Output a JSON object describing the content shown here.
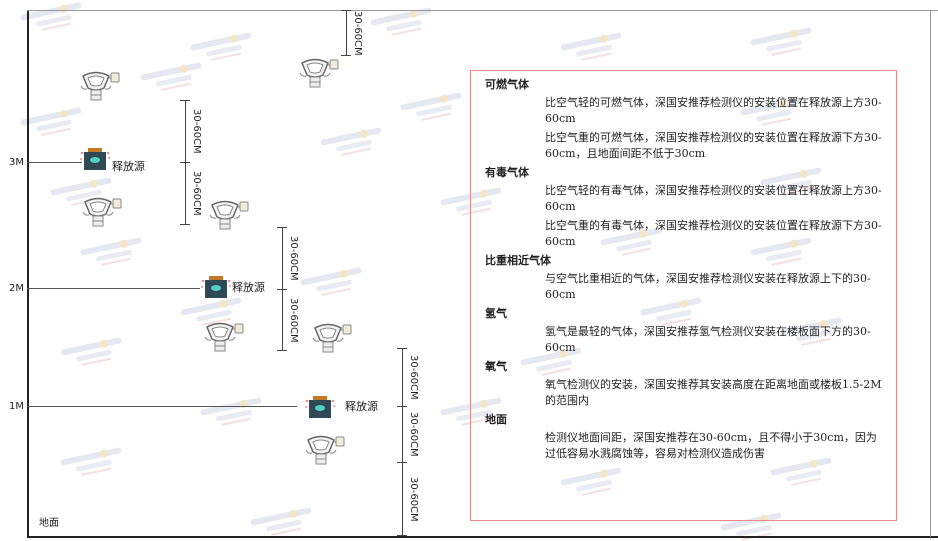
{
  "watermark": {
    "brand": "SINGOAN",
    "chinese": "深国安"
  },
  "levels": {
    "l3": "3M",
    "l2": "2M",
    "l1": "1M",
    "ground": "地面"
  },
  "dimension_label": "30-60CM",
  "source_label": "释放源",
  "colors": {
    "box_border": "#e88a8a",
    "source_body": "#2f4a55",
    "source_cap": "#c07a2a",
    "source_face": "#4fd1c5"
  },
  "legend": {
    "sections": [
      {
        "title": "可燃气体",
        "paragraphs": [
          "比空气轻的可燃气体，深国安推荐检测仪的安装位置在释放源上方30-60cm",
          "比空气重的可燃气体，深国安推荐检测仪的安装位置在释放源下方30-60cm，且地面间距不低于30cm"
        ]
      },
      {
        "title": "有毒气体",
        "paragraphs": [
          "比空气轻的有毒气体，深国安推荐检测仪的安装位置在释放源上方30-60cm",
          "比空气重的有毒气体，深国安推荐检测仪的安装位置在释放源下方30-60cm"
        ]
      },
      {
        "title": "比重相近气体",
        "paragraphs": [
          "与空气比重相近的气体，深国安推荐检测仪安装在释放源上下的30-60cm"
        ]
      },
      {
        "title": "氢气",
        "paragraphs": [
          "氢气是最轻的气体，深国安推荐氢气检测仪安装在楼板面下方的30-60cm"
        ]
      },
      {
        "title": "氧气",
        "paragraphs": [
          "氧气检测仪的安装，深国安推荐其安装高度在距离地面或楼板1.5-2M的范围内"
        ]
      },
      {
        "title": "地面",
        "paragraphs": [
          "检测仪地面间距，深国安推荐在30-60cm，且不得小于30cm，因为过低容易水溅腐蚀等，容易对检测仪造成伤害"
        ]
      }
    ]
  }
}
